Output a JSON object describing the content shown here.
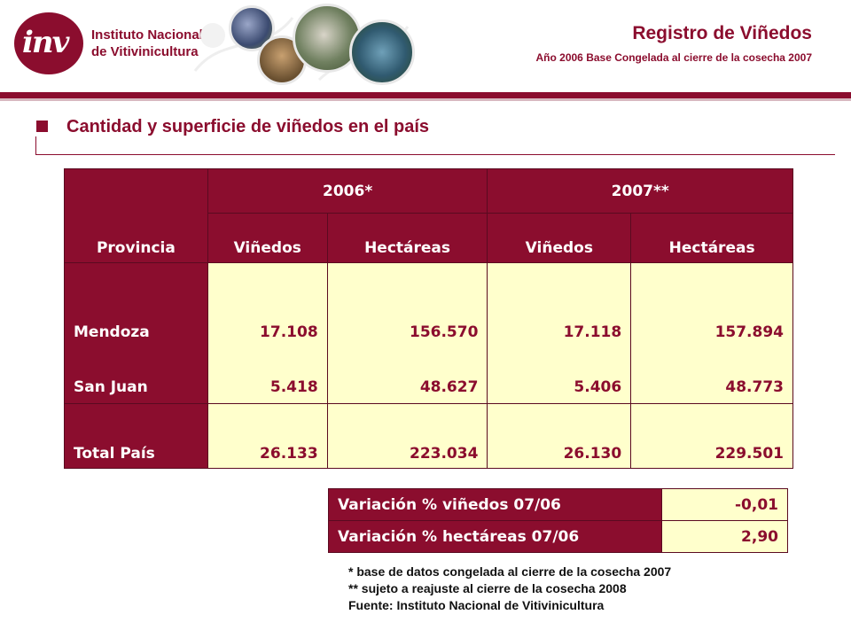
{
  "header": {
    "logo_letters": "inv",
    "logo_line1": "Instituto Nacional",
    "logo_line2": "de Vitivinicultura",
    "title": "Registro de Viñedos",
    "subtitle": "Año 2006 Base Congelada al cierre de la cosecha 2007"
  },
  "section_title": "Cantidad y superficie de viñedos en el país",
  "table": {
    "province_header": "Provincia",
    "year_headers": [
      "2006*",
      "2007**"
    ],
    "sub_headers": [
      "Viñedos",
      "Hectáreas",
      "Viñedos",
      "Hectáreas"
    ],
    "rows": [
      {
        "province": "Mendoza",
        "values": [
          "17.108",
          "156.570",
          "17.118",
          "157.894"
        ]
      },
      {
        "province": "San Juan",
        "values": [
          "5.418",
          "48.627",
          "5.406",
          "48.773"
        ]
      },
      {
        "province": "Total País",
        "values": [
          "26.133",
          "223.034",
          "26.130",
          "229.501"
        ]
      }
    ]
  },
  "variation": [
    {
      "label": "Variación % viñedos 07/06",
      "value": "-0,01"
    },
    {
      "label": "Variación % hectáreas 07/06",
      "value": "2,90"
    }
  ],
  "notes": [
    "* base de datos congelada al cierre de la cosecha 2007",
    "** sujeto a reajuste al cierre de la cosecha 2008",
    "Fuente: Instituto Nacional de Vitivinicultura"
  ],
  "colors": {
    "brand": "#8b0d2e",
    "cell_bg": "#ffffcc"
  },
  "icons": [
    "logo-emblem",
    "photo-collage"
  ]
}
